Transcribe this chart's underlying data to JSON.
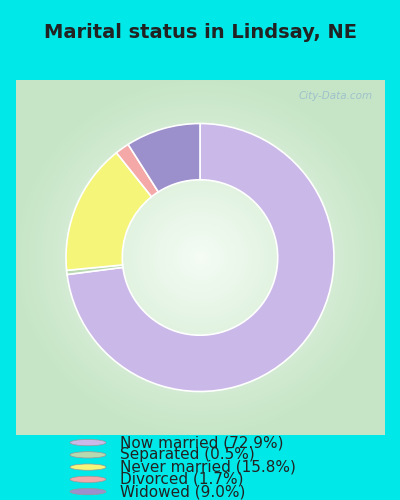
{
  "title": "Marital status in Lindsay, NE",
  "slices": [
    72.9,
    0.5,
    15.8,
    1.7,
    9.0
  ],
  "labels": [
    "Now married (72.9%)",
    "Separated (0.5%)",
    "Never married (15.8%)",
    "Divorced (1.7%)",
    "Widowed (9.0%)"
  ],
  "colors": [
    "#c9b8e8",
    "#b8d8b0",
    "#f5f57a",
    "#f4a8a8",
    "#9b8fcc"
  ],
  "background_outer": "#00e8e8",
  "title_fontsize": 14,
  "legend_fontsize": 11,
  "watermark": "City-Data.com",
  "start_angle": 90
}
